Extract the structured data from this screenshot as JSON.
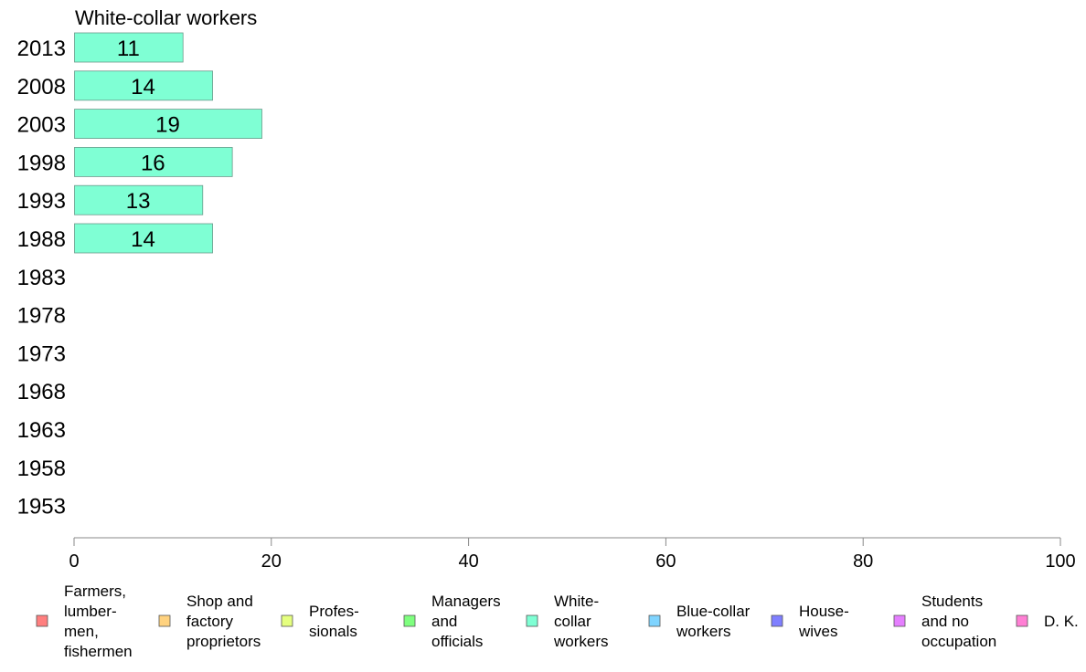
{
  "chart_data": {
    "type": "bar",
    "orientation": "horizontal",
    "title": "White-collar workers",
    "categories": [
      "2013",
      "2008",
      "2003",
      "1998",
      "1993",
      "1988",
      "1983",
      "1978",
      "1973",
      "1968",
      "1963",
      "1958",
      "1953"
    ],
    "values": [
      11,
      14,
      19,
      16,
      13,
      14,
      null,
      null,
      null,
      null,
      null,
      null,
      null
    ],
    "xlim": [
      0,
      100
    ],
    "xticks": [
      0,
      20,
      40,
      60,
      80,
      100
    ],
    "grid": false,
    "bar_color": "#7fffd4",
    "legend_position": "bottom",
    "legend": [
      {
        "lines": [
          "Farmers,",
          "lumber-",
          "men,",
          "fishermen"
        ],
        "color": "#ff7f7f"
      },
      {
        "lines": [
          "Shop and",
          "factory",
          "proprietors"
        ],
        "color": "#ffd27f"
      },
      {
        "lines": [
          "Profes-",
          "sionals"
        ],
        "color": "#e5ff7f"
      },
      {
        "lines": [
          "Managers",
          "and",
          "officials"
        ],
        "color": "#7fff7f"
      },
      {
        "lines": [
          "White-",
          "collar",
          "workers"
        ],
        "color": "#7fffd4"
      },
      {
        "lines": [
          "Blue-collar",
          "workers"
        ],
        "color": "#7fd4ff"
      },
      {
        "lines": [
          "House-",
          "wives"
        ],
        "color": "#7f7fff"
      },
      {
        "lines": [
          "Students",
          "and no",
          "occupation"
        ],
        "color": "#e57fff"
      },
      {
        "lines": [
          "D. K."
        ],
        "color": "#ff7fd4"
      }
    ]
  }
}
